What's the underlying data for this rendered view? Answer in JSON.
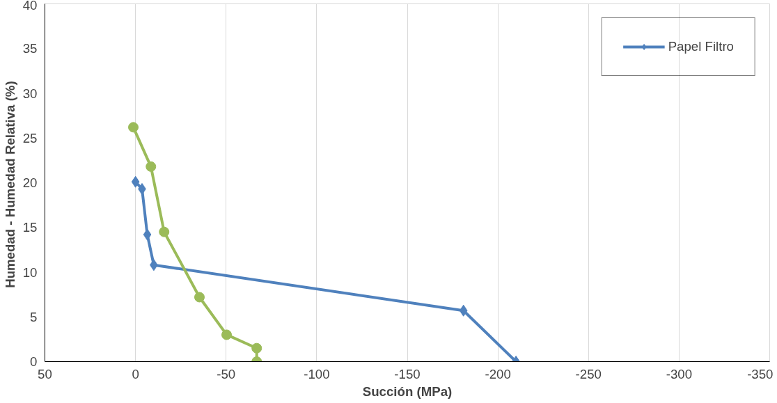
{
  "chart_data": {
    "type": "line",
    "xlabel": "Succión (MPa)",
    "ylabel": "Humedad - Humedad Relativa  (%)",
    "xlim": [
      50,
      -350
    ],
    "xticks": [
      50,
      0,
      -50,
      -100,
      -150,
      -200,
      -250,
      -300,
      -350
    ],
    "ylim": [
      0,
      40
    ],
    "yticks": [
      0,
      5,
      10,
      15,
      20,
      25,
      30,
      35,
      40
    ],
    "grid": "x",
    "legend": "top right",
    "line_style": "solid",
    "series": [
      {
        "name": "Papel Filtro",
        "color": "#4f81bd",
        "marker": "diamond",
        "x": [
          0,
          -3.6,
          -6.5,
          -10.1,
          -181,
          -210
        ],
        "values": [
          20.1,
          19.3,
          14.2,
          10.8,
          5.7,
          0
        ]
      },
      {
        "color": "#9bbb59",
        "marker": "circle",
        "x": [
          1.2,
          -8.5,
          -15.8,
          -35.3,
          -50.3,
          -66.9,
          -66.9
        ],
        "values": [
          26.2,
          21.8,
          14.5,
          7.2,
          3.0,
          1.5,
          0
        ]
      }
    ]
  }
}
